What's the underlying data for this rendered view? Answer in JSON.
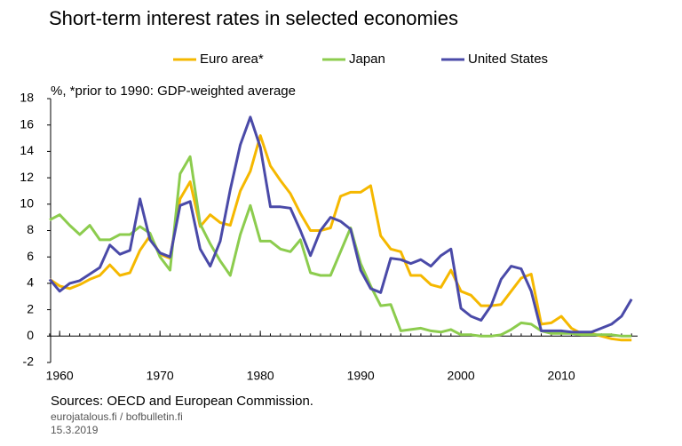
{
  "chart_data": {
    "type": "line",
    "title": "Short-term interest rates in selected economies",
    "subtitle": "%, *prior to 1990: GDP-weighted average",
    "source": "Sources: OECD and European Commission.",
    "notes": [
      "eurojatalous.fi / bofbulletin.fi",
      "15.3.2019"
    ],
    "x": [
      1959,
      1960,
      1961,
      1962,
      1963,
      1964,
      1965,
      1966,
      1967,
      1968,
      1969,
      1970,
      1971,
      1972,
      1973,
      1974,
      1975,
      1976,
      1977,
      1978,
      1979,
      1980,
      1981,
      1982,
      1983,
      1984,
      1985,
      1986,
      1987,
      1988,
      1989,
      1990,
      1991,
      1992,
      1993,
      1994,
      1995,
      1996,
      1997,
      1998,
      1999,
      2000,
      2001,
      2002,
      2003,
      2004,
      2005,
      2006,
      2007,
      2008,
      2009,
      2010,
      2011,
      2012,
      2013,
      2014,
      2015,
      2016,
      2017
    ],
    "xlim": [
      1959.1,
      2017.6
    ],
    "xticks": [
      1960,
      1970,
      1980,
      1990,
      2000,
      2010
    ],
    "ylim": [
      -2,
      18
    ],
    "yticks": [
      -2,
      0,
      2,
      4,
      6,
      8,
      10,
      12,
      14,
      16,
      18
    ],
    "grid": false,
    "legend": "top",
    "series": [
      {
        "name": "Euro area*",
        "color": "#f5b800",
        "values": [
          4.3,
          3.8,
          3.6,
          3.9,
          4.3,
          4.6,
          5.4,
          4.6,
          4.8,
          6.5,
          7.6,
          6.2,
          5.9,
          10.4,
          11.7,
          8.3,
          9.2,
          8.6,
          8.4,
          11.0,
          12.5,
          15.2,
          12.9,
          11.8,
          10.8,
          9.3,
          8.0,
          8.0,
          8.2,
          10.6,
          10.9,
          10.9,
          11.4,
          7.6,
          6.6,
          6.4,
          4.6,
          4.6,
          3.9,
          3.7,
          5.0,
          3.4,
          3.1,
          2.3,
          2.3,
          2.4,
          3.4,
          4.4,
          4.7,
          0.9,
          1.0,
          1.5,
          0.6,
          0.2,
          0.2,
          0.0,
          -0.2,
          -0.3,
          -0.3
        ]
      },
      {
        "name": "Japan",
        "color": "#8ccc4e",
        "values": [
          8.8,
          9.2,
          8.4,
          7.7,
          8.4,
          7.3,
          7.3,
          7.7,
          7.7,
          8.3,
          7.8,
          6.0,
          5.0,
          12.3,
          13.6,
          8.5,
          7.0,
          5.7,
          4.6,
          7.7,
          9.9,
          7.2,
          7.2,
          6.6,
          6.4,
          7.3,
          4.8,
          4.6,
          4.6,
          6.4,
          8.2,
          5.5,
          3.8,
          2.3,
          2.4,
          0.4,
          0.5,
          0.6,
          0.4,
          0.3,
          0.5,
          0.1,
          0.1,
          0.0,
          0.0,
          0.1,
          0.5,
          1.0,
          0.9,
          0.4,
          0.2,
          0.2,
          0.2,
          0.1,
          0.1,
          0.1,
          0.1,
          0.0,
          0.0
        ]
      },
      {
        "name": "United States",
        "color": "#4a4aa8",
        "values": [
          4.3,
          3.4,
          4.0,
          4.2,
          4.7,
          5.2,
          6.9,
          6.2,
          6.5,
          10.4,
          7.3,
          6.3,
          6.0,
          9.9,
          10.2,
          6.6,
          5.3,
          7.2,
          11.1,
          14.5,
          16.6,
          14.3,
          9.8,
          9.8,
          9.7,
          8.0,
          6.1,
          8.0,
          9.0,
          8.7,
          8.1,
          5.0,
          3.6,
          3.3,
          5.9,
          5.8,
          5.5,
          5.8,
          5.3,
          6.1,
          6.6,
          2.1,
          1.5,
          1.2,
          2.3,
          4.3,
          5.3,
          5.1,
          3.4,
          0.4,
          0.4,
          0.4,
          0.3,
          0.3,
          0.3,
          0.6,
          0.9,
          1.5,
          2.8
        ]
      }
    ]
  }
}
